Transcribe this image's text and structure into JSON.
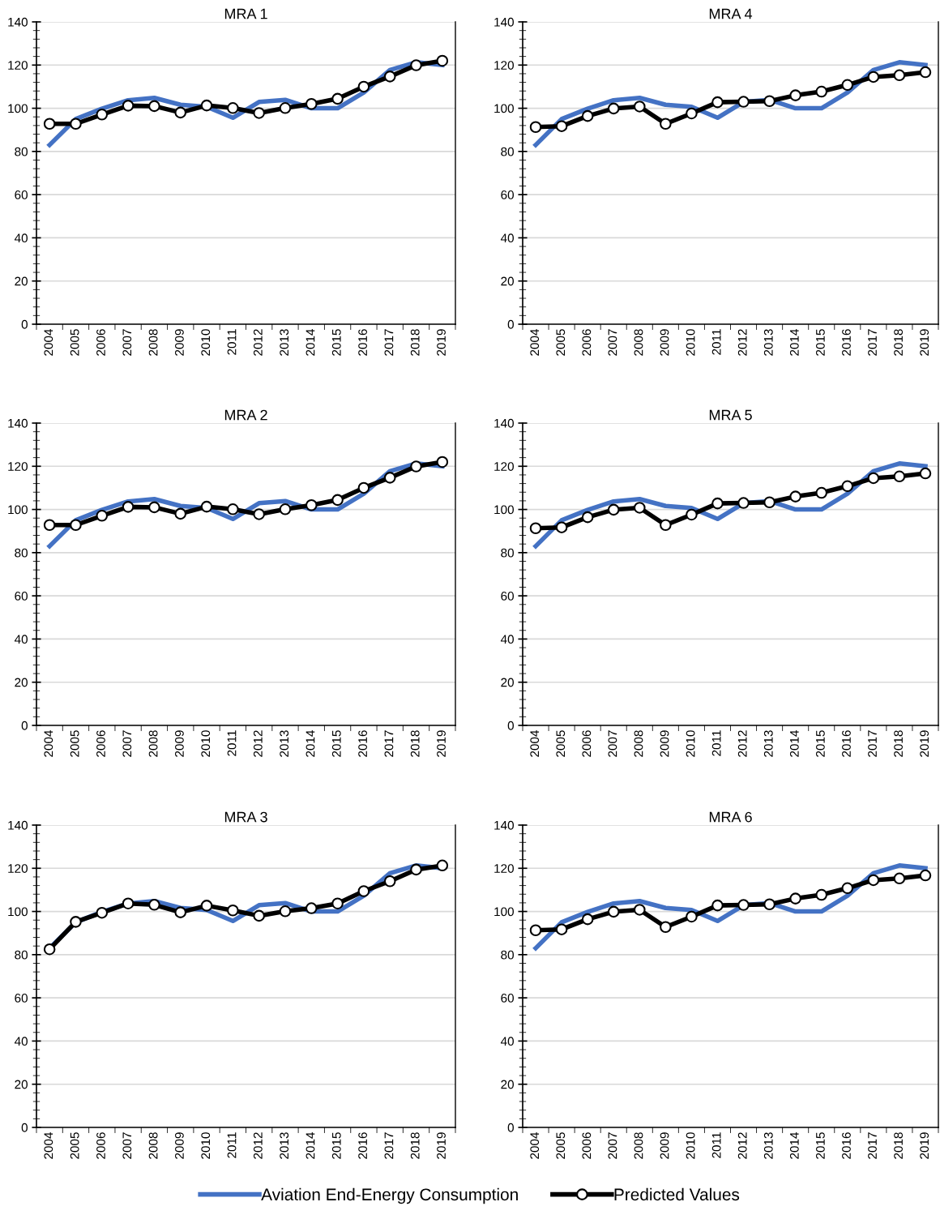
{
  "chart_data": [
    {
      "type": "line",
      "title": "MRA 1",
      "categories": [
        "2004",
        "2005",
        "2006",
        "2007",
        "2008",
        "2009",
        "2010",
        "2011",
        "2012",
        "2013",
        "2014",
        "2015",
        "2016",
        "2017",
        "2018",
        "2019"
      ],
      "ylim": [
        0,
        140
      ],
      "yticks": [
        0,
        20,
        40,
        60,
        80,
        100,
        120,
        140
      ],
      "grid": "y",
      "legend": "bottom",
      "series": [
        {
          "name": "Aviation End-Energy Consumption",
          "color": "#4472c4",
          "marker": "none",
          "values": [
            83,
            95,
            99.8,
            103.7,
            104.8,
            101.6,
            100.7,
            95.6,
            102.9,
            103.9,
            100,
            100,
            107.3,
            117.7,
            121.3,
            120
          ]
        },
        {
          "name": "Predicted Values",
          "color": "#000000",
          "marker": "circle",
          "values": [
            92.8,
            92.8,
            97.1,
            101.2,
            101,
            98,
            101.3,
            100.1,
            97.8,
            100.1,
            102,
            104.4,
            110,
            114.7,
            119.9,
            122
          ]
        }
      ]
    },
    {
      "type": "line",
      "title": "MRA 4",
      "categories": [
        "2004",
        "2005",
        "2006",
        "2007",
        "2008",
        "2009",
        "2010",
        "2011",
        "2012",
        "2013",
        "2014",
        "2015",
        "2016",
        "2017",
        "2018",
        "2019"
      ],
      "ylim": [
        0,
        140
      ],
      "yticks": [
        0,
        20,
        40,
        60,
        80,
        100,
        120,
        140
      ],
      "grid": "y",
      "series": [
        {
          "name": "Aviation End-Energy Consumption",
          "color": "#4472c4",
          "marker": "none",
          "values": [
            83,
            95,
            99.8,
            103.7,
            104.8,
            101.6,
            100.7,
            95.6,
            102.9,
            103.9,
            100,
            100,
            107.3,
            117.7,
            121.3,
            120
          ]
        },
        {
          "name": "Predicted Values",
          "color": "#000000",
          "marker": "circle",
          "values": [
            91.3,
            91.7,
            96.4,
            99.9,
            100.8,
            92.8,
            97.6,
            102.8,
            103,
            103.3,
            106,
            107.7,
            110.8,
            114.5,
            115.3,
            116.7
          ]
        }
      ]
    },
    {
      "type": "line",
      "title": "MRA 2",
      "categories": [
        "2004",
        "2005",
        "2006",
        "2007",
        "2008",
        "2009",
        "2010",
        "2011",
        "2012",
        "2013",
        "2014",
        "2015",
        "2016",
        "2017",
        "2018",
        "2019"
      ],
      "ylim": [
        0,
        140
      ],
      "yticks": [
        0,
        20,
        40,
        60,
        80,
        100,
        120,
        140
      ],
      "grid": "y",
      "series": [
        {
          "name": "Aviation End-Energy Consumption",
          "color": "#4472c4",
          "marker": "none",
          "values": [
            83,
            95,
            99.8,
            103.7,
            104.8,
            101.6,
            100.7,
            95.6,
            102.9,
            103.9,
            100,
            100,
            107.3,
            117.7,
            121.3,
            120
          ]
        },
        {
          "name": "Predicted Values",
          "color": "#000000",
          "marker": "circle",
          "values": [
            92.8,
            92.8,
            97.1,
            101.2,
            101,
            98,
            101.3,
            100.1,
            97.8,
            100.1,
            102,
            104.4,
            110,
            114.7,
            119.9,
            122
          ]
        }
      ]
    },
    {
      "type": "line",
      "title": "MRA 5",
      "categories": [
        "2004",
        "2005",
        "2006",
        "2007",
        "2008",
        "2009",
        "2010",
        "2011",
        "2012",
        "2013",
        "2014",
        "2015",
        "2016",
        "2017",
        "2018",
        "2019"
      ],
      "ylim": [
        0,
        140
      ],
      "yticks": [
        0,
        20,
        40,
        60,
        80,
        100,
        120,
        140
      ],
      "grid": "y",
      "series": [
        {
          "name": "Aviation End-Energy Consumption",
          "color": "#4472c4",
          "marker": "none",
          "values": [
            83,
            95,
            99.8,
            103.7,
            104.8,
            101.6,
            100.7,
            95.6,
            102.9,
            103.9,
            100,
            100,
            107.3,
            117.7,
            121.3,
            120
          ]
        },
        {
          "name": "Predicted Values",
          "color": "#000000",
          "marker": "circle",
          "values": [
            91.3,
            91.7,
            96.4,
            99.9,
            100.8,
            92.8,
            97.6,
            102.8,
            103,
            103.3,
            106,
            107.7,
            110.8,
            114.5,
            115.3,
            116.7
          ]
        }
      ]
    },
    {
      "type": "line",
      "title": "MRA 3",
      "categories": [
        "2004",
        "2005",
        "2006",
        "2007",
        "2008",
        "2009",
        "2010",
        "2011",
        "2012",
        "2013",
        "2014",
        "2015",
        "2016",
        "2017",
        "2018",
        "2019"
      ],
      "ylim": [
        0,
        140
      ],
      "yticks": [
        0,
        20,
        40,
        60,
        80,
        100,
        120,
        140
      ],
      "grid": "y",
      "series": [
        {
          "name": "Aviation End-Energy Consumption",
          "color": "#4472c4",
          "marker": "none",
          "values": [
            83,
            95,
            99.8,
            103.7,
            104.8,
            101.6,
            100.7,
            95.6,
            102.9,
            103.9,
            100,
            100,
            107.3,
            117.7,
            121.3,
            120
          ]
        },
        {
          "name": "Predicted Values",
          "color": "#000000",
          "marker": "circle",
          "values": [
            82.5,
            95.2,
            99.4,
            103.7,
            103.1,
            99.6,
            102.7,
            100.5,
            98,
            100.1,
            101.5,
            103.7,
            109.4,
            114,
            119.4,
            121.3
          ]
        }
      ]
    },
    {
      "type": "line",
      "title": "MRA 6",
      "categories": [
        "2004",
        "2005",
        "2006",
        "2007",
        "2008",
        "2009",
        "2010",
        "2011",
        "2012",
        "2013",
        "2014",
        "2015",
        "2016",
        "2017",
        "2018",
        "2019"
      ],
      "ylim": [
        0,
        140
      ],
      "yticks": [
        0,
        20,
        40,
        60,
        80,
        100,
        120,
        140
      ],
      "grid": "y",
      "series": [
        {
          "name": "Aviation End-Energy Consumption",
          "color": "#4472c4",
          "marker": "none",
          "values": [
            83,
            95,
            99.8,
            103.7,
            104.8,
            101.6,
            100.7,
            95.6,
            102.9,
            103.9,
            100,
            100,
            107.3,
            117.7,
            121.3,
            120
          ]
        },
        {
          "name": "Predicted Values",
          "color": "#000000",
          "marker": "circle",
          "values": [
            91.3,
            91.7,
            96.4,
            99.9,
            100.8,
            92.8,
            97.6,
            102.8,
            103,
            103.3,
            106,
            107.7,
            110.8,
            114.5,
            115.3,
            116.7
          ]
        }
      ]
    }
  ]
}
